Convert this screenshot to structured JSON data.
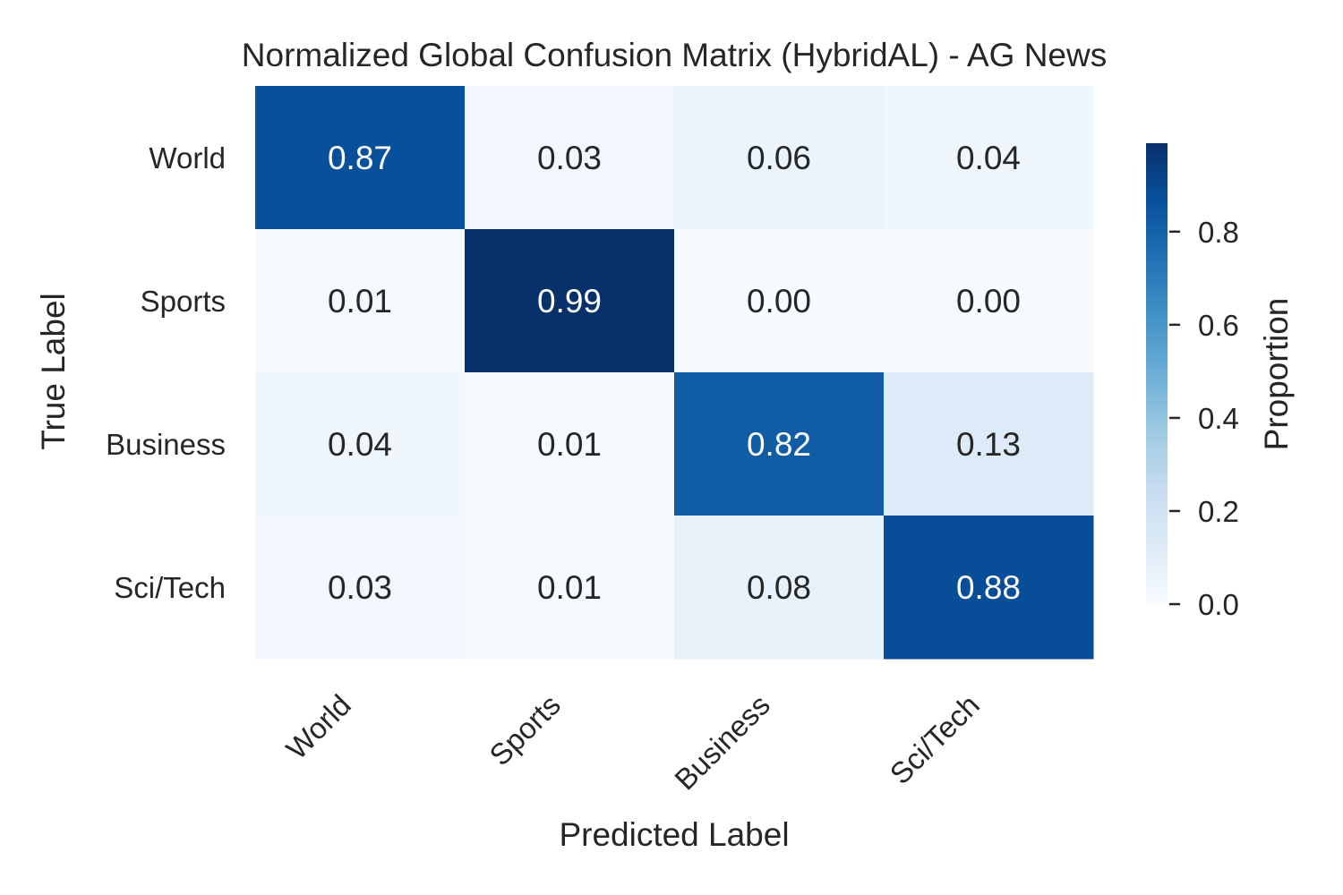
{
  "chart_data": {
    "type": "heatmap",
    "title": "Normalized Global Confusion Matrix (HybridAL) - AG News",
    "xlabel": "Predicted Label",
    "ylabel": "True Label",
    "x_categories": [
      "World",
      "Sports",
      "Business",
      "Sci/Tech"
    ],
    "y_categories": [
      "World",
      "Sports",
      "Business",
      "Sci/Tech"
    ],
    "values": [
      [
        0.87,
        0.03,
        0.06,
        0.04
      ],
      [
        0.01,
        0.99,
        0.0,
        0.0
      ],
      [
        0.04,
        0.01,
        0.82,
        0.13
      ],
      [
        0.03,
        0.01,
        0.08,
        0.88
      ]
    ],
    "value_labels": [
      [
        "0.87",
        "0.03",
        "0.06",
        "0.04"
      ],
      [
        "0.01",
        "0.99",
        "0.00",
        "0.00"
      ],
      [
        "0.04",
        "0.01",
        "0.82",
        "0.13"
      ],
      [
        "0.03",
        "0.01",
        "0.08",
        "0.88"
      ]
    ],
    "colorbar": {
      "label": "Proportion",
      "range": [
        0.0,
        0.99
      ],
      "ticks": [
        0.0,
        0.2,
        0.4,
        0.6,
        0.8
      ],
      "tick_labels": [
        "0.0",
        "0.2",
        "0.4",
        "0.6",
        "0.8"
      ]
    },
    "colormap": "Blues",
    "grid": false
  }
}
